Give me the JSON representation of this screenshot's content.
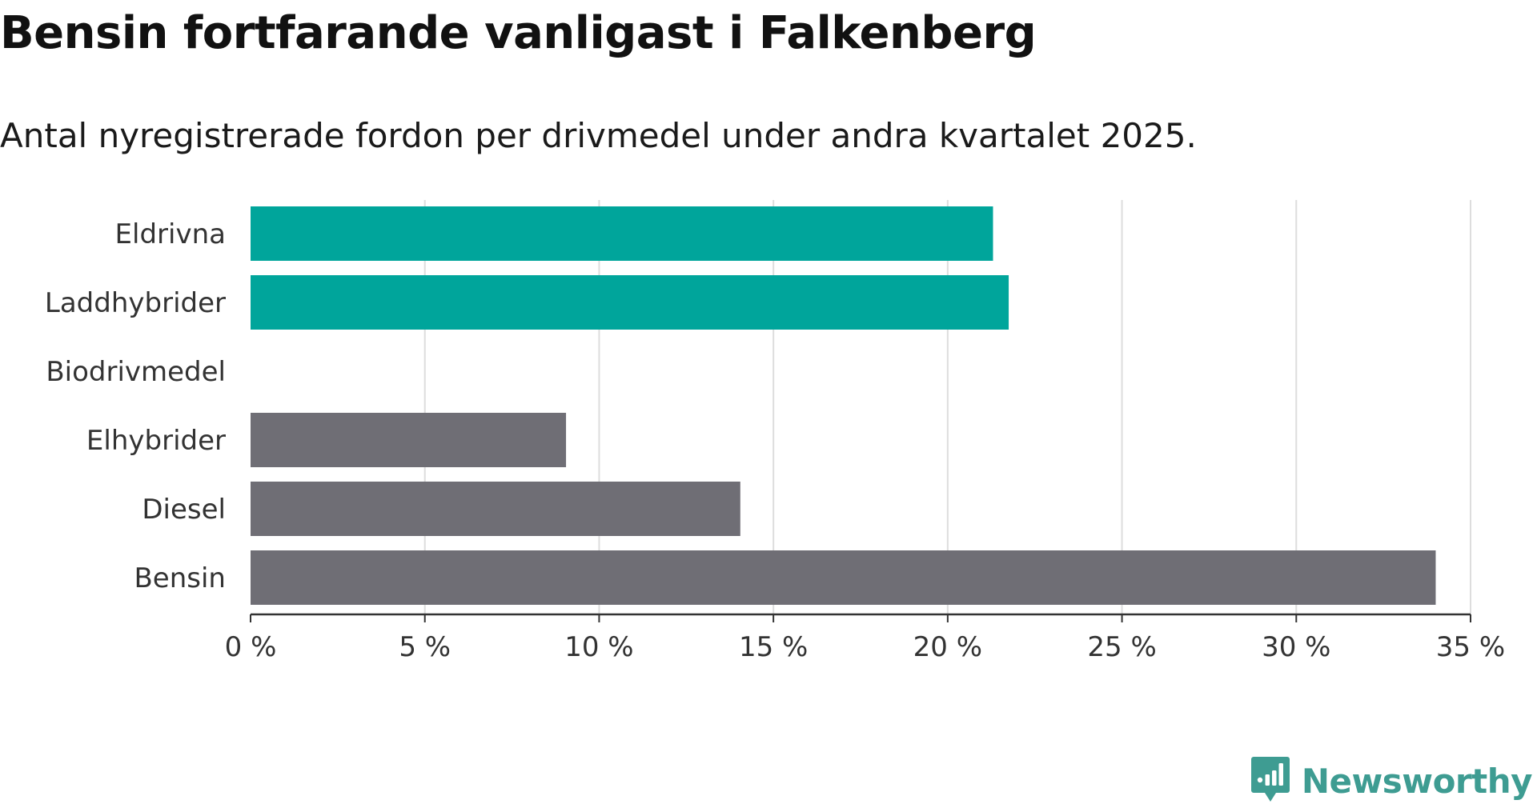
{
  "title": "Bensin fortfarande vanligast i Falkenberg",
  "subtitle": "Antal nyregistrerade fordon per drivmedel under andra kvartalet 2025.",
  "brand": {
    "name": "Newsworthy",
    "icon": "newsworthy-logo-icon",
    "color": "#3e9c92"
  },
  "colors": {
    "highlight": "#00a59b",
    "default": "#6f6e75",
    "grid": "#dddddd",
    "axis": "#333333"
  },
  "chart_data": {
    "type": "bar",
    "orientation": "horizontal",
    "categories": [
      "Eldrivna",
      "Laddhybrider",
      "Biodrivmedel",
      "Elhybrider",
      "Diesel",
      "Bensin"
    ],
    "values": [
      21.3,
      21.75,
      0,
      9.05,
      14.05,
      34.0
    ],
    "bar_colors": [
      "#00a59b",
      "#00a59b",
      "#6f6e75",
      "#6f6e75",
      "#6f6e75",
      "#6f6e75"
    ],
    "xlim": [
      0,
      35
    ],
    "ticks": [
      0,
      5,
      10,
      15,
      20,
      25,
      30,
      35
    ],
    "tick_labels": [
      "0 %",
      "5 %",
      "10 %",
      "15 %",
      "20 %",
      "25 %",
      "30 %",
      "35 %"
    ],
    "xlabel": "",
    "ylabel": "",
    "grid": "vertical",
    "legend": "none"
  }
}
